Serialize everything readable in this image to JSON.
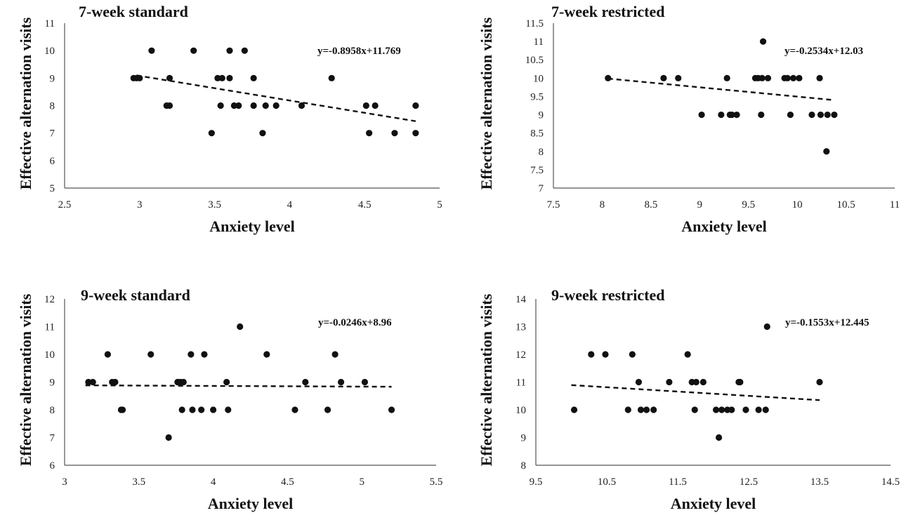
{
  "chart_data": [
    {
      "type": "scatter",
      "title": "7-week standard",
      "xlabel": "Anxiety level",
      "ylabel": "Effective alternation visits",
      "xlim": [
        2.5,
        5
      ],
      "ylim": [
        5,
        11
      ],
      "xticks": [
        2.5,
        3,
        3.5,
        4,
        4.5,
        5
      ],
      "yticks": [
        5,
        6,
        7,
        8,
        9,
        10,
        11
      ],
      "tick_labels_x": [
        "2.5",
        "3",
        "3.5",
        "4",
        "4.5",
        "5"
      ],
      "tick_labels_y": [
        "5",
        "6",
        "7",
        "8",
        "9",
        "10",
        "11"
      ],
      "grid": false,
      "equation": "y=-0.8958x+11.769",
      "trendline": {
        "slope": -0.8958,
        "intercept": 11.769,
        "x_range": [
          2.98,
          4.84
        ],
        "style": "dashed"
      },
      "points": [
        [
          2.96,
          9
        ],
        [
          2.98,
          9
        ],
        [
          3.0,
          9
        ],
        [
          3.08,
          10
        ],
        [
          3.18,
          8
        ],
        [
          3.2,
          8
        ],
        [
          3.2,
          9
        ],
        [
          3.36,
          10
        ],
        [
          3.48,
          7
        ],
        [
          3.52,
          9
        ],
        [
          3.54,
          8
        ],
        [
          3.55,
          9
        ],
        [
          3.6,
          10
        ],
        [
          3.6,
          9
        ],
        [
          3.63,
          8
        ],
        [
          3.66,
          8
        ],
        [
          3.7,
          10
        ],
        [
          3.76,
          8
        ],
        [
          3.76,
          9
        ],
        [
          3.82,
          7
        ],
        [
          3.84,
          8
        ],
        [
          3.91,
          8
        ],
        [
          4.08,
          8
        ],
        [
          4.28,
          9
        ],
        [
          4.51,
          8
        ],
        [
          4.53,
          7
        ],
        [
          4.57,
          8
        ],
        [
          4.7,
          7
        ],
        [
          4.84,
          8
        ],
        [
          4.84,
          7
        ]
      ]
    },
    {
      "type": "scatter",
      "title": "7-week restricted",
      "xlabel": "Anxiety level",
      "ylabel": "Effective alternation visits",
      "xlim": [
        7.5,
        11
      ],
      "ylim": [
        7,
        11.5
      ],
      "xticks": [
        7.5,
        8,
        8.5,
        9,
        9.5,
        10,
        10.5,
        11
      ],
      "yticks": [
        7,
        7.5,
        8,
        8.5,
        9,
        9.5,
        10,
        10.5,
        11,
        11.5
      ],
      "tick_labels_x": [
        "7.5",
        "8",
        "8.5",
        "9",
        "9.5",
        "10",
        "10.5",
        "11"
      ],
      "tick_labels_y": [
        "7",
        "7.5",
        "8",
        "8.5",
        "9",
        "9.5",
        "10",
        "10.5",
        "11",
        "11.5"
      ],
      "grid": false,
      "equation": "y=-0.2534x+12.03",
      "trendline": {
        "slope": -0.2534,
        "intercept": 12.03,
        "x_range": [
          8.06,
          10.38
        ],
        "style": "dashed"
      },
      "points": [
        [
          8.06,
          10
        ],
        [
          8.63,
          10
        ],
        [
          8.78,
          10
        ],
        [
          9.02,
          9
        ],
        [
          9.22,
          9
        ],
        [
          9.28,
          10
        ],
        [
          9.31,
          9
        ],
        [
          9.33,
          9
        ],
        [
          9.38,
          9
        ],
        [
          9.57,
          10
        ],
        [
          9.6,
          10
        ],
        [
          9.63,
          9
        ],
        [
          9.64,
          10
        ],
        [
          9.65,
          11
        ],
        [
          9.7,
          10
        ],
        [
          9.87,
          10
        ],
        [
          9.9,
          10
        ],
        [
          9.93,
          9
        ],
        [
          9.96,
          10
        ],
        [
          10.02,
          10
        ],
        [
          10.15,
          9
        ],
        [
          10.23,
          10
        ],
        [
          10.24,
          9
        ],
        [
          10.3,
          8
        ],
        [
          10.31,
          9
        ],
        [
          10.38,
          9
        ]
      ]
    },
    {
      "type": "scatter",
      "title": "9-week standard",
      "xlabel": "Anxiety level",
      "ylabel": "Effective alternation visits",
      "xlim": [
        3,
        5.5
      ],
      "ylim": [
        6,
        12
      ],
      "xticks": [
        3,
        3.5,
        4,
        4.5,
        5,
        5.5
      ],
      "yticks": [
        6,
        7,
        8,
        9,
        10,
        11,
        12
      ],
      "tick_labels_x": [
        "3",
        "3.5",
        "4",
        "4.5",
        "5",
        "5.5"
      ],
      "tick_labels_y": [
        "6",
        "7",
        "8",
        "9",
        "10",
        "11",
        "12"
      ],
      "grid": false,
      "equation": "y=-0.0246x+8.96",
      "trendline": {
        "slope": -0.0246,
        "intercept": 8.96,
        "x_range": [
          3.14,
          5.2
        ],
        "style": "dashed"
      },
      "points": [
        [
          3.16,
          9
        ],
        [
          3.19,
          9
        ],
        [
          3.29,
          10
        ],
        [
          3.32,
          9
        ],
        [
          3.34,
          9
        ],
        [
          3.38,
          8
        ],
        [
          3.39,
          8
        ],
        [
          3.58,
          10
        ],
        [
          3.7,
          7
        ],
        [
          3.76,
          9
        ],
        [
          3.78,
          9
        ],
        [
          3.79,
          8
        ],
        [
          3.8,
          9
        ],
        [
          3.85,
          10
        ],
        [
          3.86,
          8
        ],
        [
          3.92,
          8
        ],
        [
          3.94,
          10
        ],
        [
          4.0,
          8
        ],
        [
          4.09,
          9
        ],
        [
          4.1,
          8
        ],
        [
          4.18,
          11
        ],
        [
          4.36,
          10
        ],
        [
          4.55,
          8
        ],
        [
          4.62,
          9
        ],
        [
          4.77,
          8
        ],
        [
          4.82,
          10
        ],
        [
          4.86,
          9
        ],
        [
          5.02,
          9
        ],
        [
          5.2,
          8
        ]
      ]
    },
    {
      "type": "scatter",
      "title": "9-week restricted",
      "xlabel": "Anxiety level",
      "ylabel": "Effective alternation visits",
      "xlim": [
        9.5,
        14.5
      ],
      "ylim": [
        8,
        14
      ],
      "xticks": [
        9.5,
        10.5,
        11.5,
        12.5,
        13.5,
        14.5
      ],
      "yticks": [
        8,
        9,
        10,
        11,
        12,
        13,
        14
      ],
      "tick_labels_x": [
        "9.5",
        "10.5",
        "11.5",
        "12.5",
        "13.5",
        "14.5"
      ],
      "tick_labels_y": [
        "8",
        "9",
        "10",
        "11",
        "12",
        "13",
        "14"
      ],
      "grid": false,
      "equation": "y=-0.1553x+12.445",
      "trendline": {
        "slope": -0.1553,
        "intercept": 12.445,
        "x_range": [
          10.0,
          13.5
        ],
        "style": "dashed"
      },
      "points": [
        [
          10.04,
          10
        ],
        [
          10.28,
          12
        ],
        [
          10.48,
          12
        ],
        [
          10.8,
          10
        ],
        [
          10.86,
          12
        ],
        [
          10.95,
          11
        ],
        [
          10.98,
          10
        ],
        [
          11.06,
          10
        ],
        [
          11.16,
          10
        ],
        [
          11.38,
          11
        ],
        [
          11.64,
          12
        ],
        [
          11.7,
          11
        ],
        [
          11.74,
          10
        ],
        [
          11.76,
          11
        ],
        [
          11.86,
          11
        ],
        [
          12.04,
          10
        ],
        [
          12.08,
          9
        ],
        [
          12.12,
          10
        ],
        [
          12.2,
          10
        ],
        [
          12.26,
          10
        ],
        [
          12.36,
          11
        ],
        [
          12.38,
          11
        ],
        [
          12.46,
          10
        ],
        [
          12.64,
          10
        ],
        [
          12.74,
          10
        ],
        [
          12.76,
          13
        ],
        [
          13.5,
          11
        ]
      ]
    }
  ]
}
